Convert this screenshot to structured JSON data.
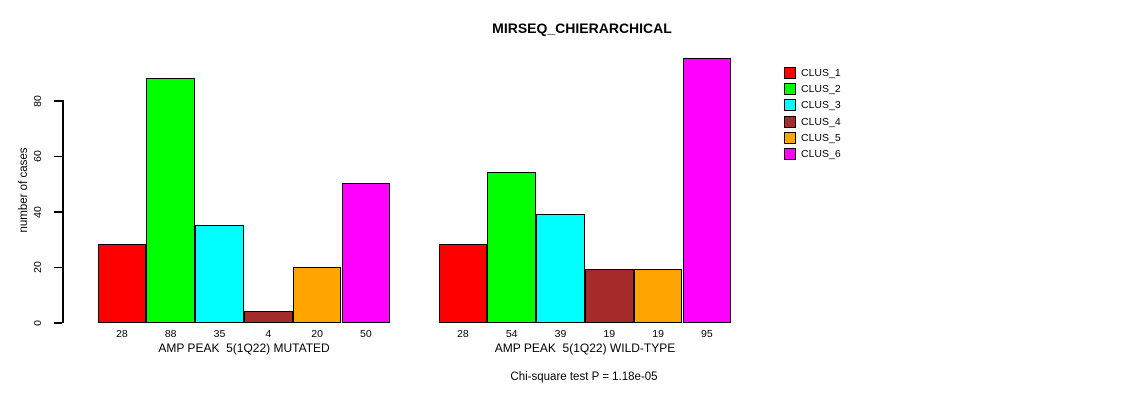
{
  "chart_data": {
    "type": "bar",
    "title": "MIRSEQ_CHIERARCHICAL",
    "ylabel": "number of cases",
    "xlabel": "",
    "footer": "Chi-square test P = 1.18e-05",
    "ylim": [
      0,
      95
    ],
    "yticks": [
      0,
      20,
      40,
      60,
      80
    ],
    "grid": false,
    "legend_position": "right",
    "categories": [
      "CLUS_1",
      "CLUS_2",
      "CLUS_3",
      "CLUS_4",
      "CLUS_5",
      "CLUS_6"
    ],
    "colors": [
      "#FF0000",
      "#00FF00",
      "#00FFFF",
      "#A52A2A",
      "#FFA500",
      "#FF00FF"
    ],
    "groups": [
      {
        "label": "AMP PEAK  5(1Q22) MUTATED",
        "values": [
          28,
          88,
          35,
          4,
          20,
          50
        ]
      },
      {
        "label": "AMP PEAK  5(1Q22) WILD-TYPE",
        "values": [
          28,
          54,
          39,
          19,
          19,
          95
        ]
      }
    ],
    "legend_entries": [
      "CLUS_1",
      "CLUS_2",
      "CLUS_3",
      "CLUS_4",
      "CLUS_5",
      "CLUS_6"
    ]
  }
}
